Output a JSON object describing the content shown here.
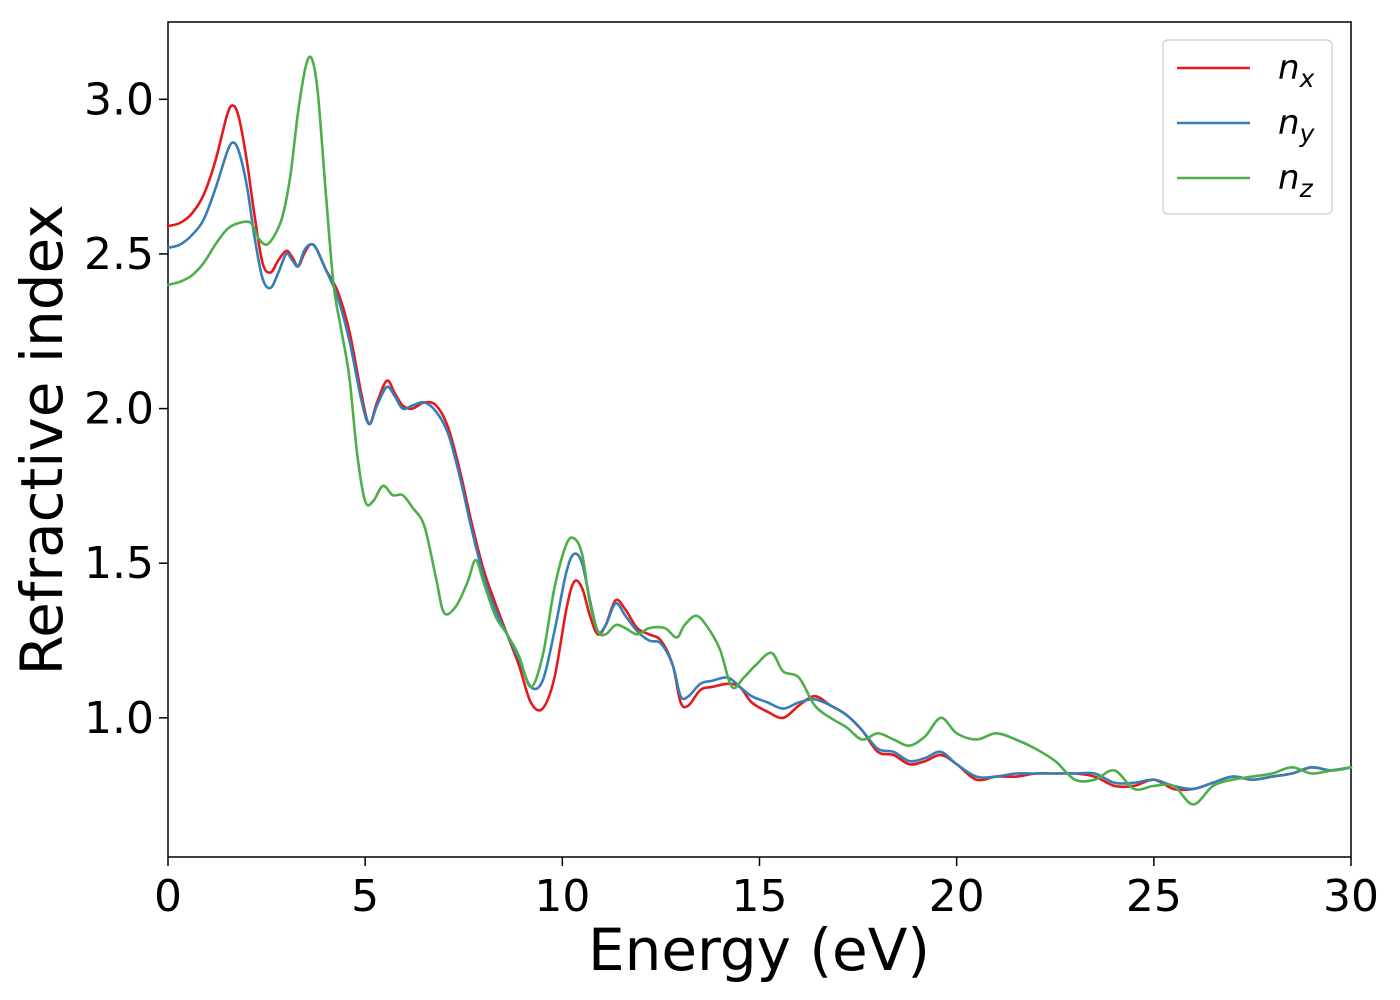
{
  "chart_data": {
    "type": "line",
    "title": "",
    "xlabel": "Energy (eV)",
    "ylabel": "Refractive index",
    "xlim": [
      0,
      30
    ],
    "ylim": [
      0.55,
      3.25
    ],
    "xticks": [
      0,
      5,
      10,
      15,
      20,
      25,
      30
    ],
    "xtick_labels": [
      "0",
      "5",
      "10",
      "15",
      "20",
      "25",
      "30"
    ],
    "yticks": [
      1.0,
      1.5,
      2.0,
      2.5,
      3.0
    ],
    "ytick_labels": [
      "1.0",
      "1.5",
      "2.0",
      "2.5",
      "3.0"
    ],
    "grid": false,
    "legend": {
      "position": "top-right",
      "entries": [
        {
          "base": "n",
          "sub": "x",
          "color": "#e41a1c"
        },
        {
          "base": "n",
          "sub": "y",
          "color": "#377eb8"
        },
        {
          "base": "n",
          "sub": "z",
          "color": "#4daf4a"
        }
      ]
    },
    "series": [
      {
        "name": "n_x",
        "color": "#e41a1c",
        "points": [
          [
            0,
            2.59
          ],
          [
            0.3,
            2.6
          ],
          [
            0.6,
            2.63
          ],
          [
            0.9,
            2.69
          ],
          [
            1.2,
            2.8
          ],
          [
            1.5,
            2.95
          ],
          [
            1.65,
            2.98
          ],
          [
            1.8,
            2.94
          ],
          [
            2.0,
            2.8
          ],
          [
            2.2,
            2.62
          ],
          [
            2.4,
            2.47
          ],
          [
            2.6,
            2.44
          ],
          [
            2.8,
            2.48
          ],
          [
            3.0,
            2.51
          ],
          [
            3.15,
            2.49
          ],
          [
            3.3,
            2.46
          ],
          [
            3.45,
            2.5
          ],
          [
            3.6,
            2.53
          ],
          [
            3.75,
            2.52
          ],
          [
            4.0,
            2.45
          ],
          [
            4.3,
            2.38
          ],
          [
            4.6,
            2.25
          ],
          [
            4.9,
            2.05
          ],
          [
            5.1,
            1.95
          ],
          [
            5.3,
            2.02
          ],
          [
            5.55,
            2.09
          ],
          [
            5.75,
            2.05
          ],
          [
            5.95,
            2.01
          ],
          [
            6.2,
            2.0
          ],
          [
            6.5,
            2.02
          ],
          [
            6.8,
            2.01
          ],
          [
            7.1,
            1.94
          ],
          [
            7.4,
            1.8
          ],
          [
            7.7,
            1.63
          ],
          [
            8.0,
            1.48
          ],
          [
            8.3,
            1.37
          ],
          [
            8.6,
            1.27
          ],
          [
            8.9,
            1.17
          ],
          [
            9.2,
            1.05
          ],
          [
            9.5,
            1.03
          ],
          [
            9.8,
            1.13
          ],
          [
            10.1,
            1.35
          ],
          [
            10.3,
            1.44
          ],
          [
            10.5,
            1.42
          ],
          [
            10.7,
            1.33
          ],
          [
            10.9,
            1.27
          ],
          [
            11.1,
            1.3
          ],
          [
            11.35,
            1.38
          ],
          [
            11.6,
            1.35
          ],
          [
            11.9,
            1.29
          ],
          [
            12.2,
            1.27
          ],
          [
            12.5,
            1.25
          ],
          [
            12.8,
            1.17
          ],
          [
            13.0,
            1.05
          ],
          [
            13.2,
            1.04
          ],
          [
            13.5,
            1.09
          ],
          [
            13.8,
            1.1
          ],
          [
            14.2,
            1.11
          ],
          [
            14.5,
            1.1
          ],
          [
            14.8,
            1.05
          ],
          [
            15.2,
            1.02
          ],
          [
            15.6,
            1.0
          ],
          [
            16.0,
            1.04
          ],
          [
            16.4,
            1.07
          ],
          [
            16.8,
            1.04
          ],
          [
            17.2,
            1.01
          ],
          [
            17.6,
            0.96
          ],
          [
            18.0,
            0.89
          ],
          [
            18.4,
            0.88
          ],
          [
            18.8,
            0.85
          ],
          [
            19.2,
            0.86
          ],
          [
            19.6,
            0.88
          ],
          [
            20.0,
            0.85
          ],
          [
            20.5,
            0.8
          ],
          [
            21.0,
            0.81
          ],
          [
            21.5,
            0.81
          ],
          [
            22.0,
            0.82
          ],
          [
            22.5,
            0.82
          ],
          [
            23.0,
            0.82
          ],
          [
            23.5,
            0.81
          ],
          [
            24.0,
            0.78
          ],
          [
            24.5,
            0.78
          ],
          [
            25.0,
            0.8
          ],
          [
            25.5,
            0.77
          ],
          [
            26.0,
            0.77
          ],
          [
            26.5,
            0.79
          ],
          [
            27.0,
            0.81
          ],
          [
            27.5,
            0.8
          ],
          [
            28.0,
            0.81
          ],
          [
            28.5,
            0.82
          ],
          [
            29.0,
            0.84
          ],
          [
            29.5,
            0.83
          ],
          [
            30.0,
            0.84
          ]
        ]
      },
      {
        "name": "n_y",
        "color": "#377eb8",
        "points": [
          [
            0,
            2.52
          ],
          [
            0.3,
            2.53
          ],
          [
            0.6,
            2.56
          ],
          [
            0.9,
            2.61
          ],
          [
            1.2,
            2.71
          ],
          [
            1.5,
            2.83
          ],
          [
            1.65,
            2.86
          ],
          [
            1.8,
            2.83
          ],
          [
            2.0,
            2.72
          ],
          [
            2.2,
            2.55
          ],
          [
            2.4,
            2.42
          ],
          [
            2.6,
            2.39
          ],
          [
            2.8,
            2.44
          ],
          [
            3.0,
            2.5
          ],
          [
            3.15,
            2.48
          ],
          [
            3.3,
            2.46
          ],
          [
            3.45,
            2.51
          ],
          [
            3.6,
            2.53
          ],
          [
            3.75,
            2.52
          ],
          [
            4.0,
            2.45
          ],
          [
            4.3,
            2.36
          ],
          [
            4.6,
            2.22
          ],
          [
            4.9,
            2.03
          ],
          [
            5.1,
            1.95
          ],
          [
            5.3,
            2.01
          ],
          [
            5.55,
            2.07
          ],
          [
            5.75,
            2.04
          ],
          [
            5.95,
            2.0
          ],
          [
            6.2,
            2.01
          ],
          [
            6.5,
            2.02
          ],
          [
            6.8,
            1.99
          ],
          [
            7.1,
            1.92
          ],
          [
            7.4,
            1.78
          ],
          [
            7.7,
            1.61
          ],
          [
            8.0,
            1.46
          ],
          [
            8.3,
            1.35
          ],
          [
            8.6,
            1.27
          ],
          [
            8.9,
            1.19
          ],
          [
            9.2,
            1.1
          ],
          [
            9.5,
            1.12
          ],
          [
            9.8,
            1.28
          ],
          [
            10.1,
            1.47
          ],
          [
            10.3,
            1.53
          ],
          [
            10.5,
            1.5
          ],
          [
            10.7,
            1.38
          ],
          [
            10.9,
            1.28
          ],
          [
            11.1,
            1.3
          ],
          [
            11.35,
            1.37
          ],
          [
            11.6,
            1.33
          ],
          [
            11.9,
            1.28
          ],
          [
            12.2,
            1.25
          ],
          [
            12.5,
            1.24
          ],
          [
            12.8,
            1.17
          ],
          [
            13.0,
            1.07
          ],
          [
            13.2,
            1.07
          ],
          [
            13.5,
            1.11
          ],
          [
            13.8,
            1.12
          ],
          [
            14.2,
            1.13
          ],
          [
            14.5,
            1.1
          ],
          [
            14.8,
            1.07
          ],
          [
            15.2,
            1.05
          ],
          [
            15.6,
            1.03
          ],
          [
            16.0,
            1.05
          ],
          [
            16.4,
            1.06
          ],
          [
            16.8,
            1.04
          ],
          [
            17.2,
            1.01
          ],
          [
            17.6,
            0.96
          ],
          [
            18.0,
            0.9
          ],
          [
            18.4,
            0.89
          ],
          [
            18.8,
            0.86
          ],
          [
            19.2,
            0.87
          ],
          [
            19.6,
            0.89
          ],
          [
            20.0,
            0.85
          ],
          [
            20.5,
            0.81
          ],
          [
            21.0,
            0.81
          ],
          [
            21.5,
            0.82
          ],
          [
            22.0,
            0.82
          ],
          [
            22.5,
            0.82
          ],
          [
            23.0,
            0.82
          ],
          [
            23.5,
            0.82
          ],
          [
            24.0,
            0.79
          ],
          [
            24.5,
            0.79
          ],
          [
            25.0,
            0.8
          ],
          [
            25.5,
            0.78
          ],
          [
            26.0,
            0.77
          ],
          [
            26.5,
            0.79
          ],
          [
            27.0,
            0.81
          ],
          [
            27.5,
            0.8
          ],
          [
            28.0,
            0.81
          ],
          [
            28.5,
            0.82
          ],
          [
            29.0,
            0.84
          ],
          [
            29.5,
            0.83
          ],
          [
            30.0,
            0.84
          ]
        ]
      },
      {
        "name": "n_z",
        "color": "#4daf4a",
        "points": [
          [
            0,
            2.4
          ],
          [
            0.3,
            2.41
          ],
          [
            0.6,
            2.43
          ],
          [
            0.9,
            2.47
          ],
          [
            1.2,
            2.53
          ],
          [
            1.5,
            2.58
          ],
          [
            1.8,
            2.6
          ],
          [
            2.1,
            2.6
          ],
          [
            2.3,
            2.55
          ],
          [
            2.5,
            2.53
          ],
          [
            2.7,
            2.56
          ],
          [
            2.9,
            2.62
          ],
          [
            3.1,
            2.75
          ],
          [
            3.3,
            2.96
          ],
          [
            3.5,
            3.11
          ],
          [
            3.65,
            3.13
          ],
          [
            3.8,
            3.02
          ],
          [
            4.0,
            2.7
          ],
          [
            4.2,
            2.4
          ],
          [
            4.4,
            2.25
          ],
          [
            4.6,
            2.1
          ],
          [
            4.8,
            1.85
          ],
          [
            5.0,
            1.7
          ],
          [
            5.2,
            1.7
          ],
          [
            5.45,
            1.75
          ],
          [
            5.7,
            1.72
          ],
          [
            5.95,
            1.72
          ],
          [
            6.2,
            1.68
          ],
          [
            6.5,
            1.62
          ],
          [
            6.8,
            1.45
          ],
          [
            7.0,
            1.34
          ],
          [
            7.3,
            1.36
          ],
          [
            7.6,
            1.44
          ],
          [
            7.8,
            1.51
          ],
          [
            8.0,
            1.44
          ],
          [
            8.3,
            1.33
          ],
          [
            8.6,
            1.27
          ],
          [
            8.9,
            1.2
          ],
          [
            9.2,
            1.1
          ],
          [
            9.5,
            1.2
          ],
          [
            9.8,
            1.42
          ],
          [
            10.1,
            1.56
          ],
          [
            10.3,
            1.58
          ],
          [
            10.5,
            1.53
          ],
          [
            10.7,
            1.37
          ],
          [
            10.9,
            1.28
          ],
          [
            11.1,
            1.27
          ],
          [
            11.35,
            1.3
          ],
          [
            11.6,
            1.29
          ],
          [
            11.9,
            1.27
          ],
          [
            12.2,
            1.29
          ],
          [
            12.6,
            1.29
          ],
          [
            12.9,
            1.26
          ],
          [
            13.1,
            1.3
          ],
          [
            13.4,
            1.33
          ],
          [
            13.7,
            1.29
          ],
          [
            14.0,
            1.22
          ],
          [
            14.3,
            1.1
          ],
          [
            14.6,
            1.13
          ],
          [
            14.9,
            1.17
          ],
          [
            15.3,
            1.21
          ],
          [
            15.6,
            1.15
          ],
          [
            16.0,
            1.13
          ],
          [
            16.4,
            1.04
          ],
          [
            16.8,
            1.0
          ],
          [
            17.2,
            0.97
          ],
          [
            17.6,
            0.93
          ],
          [
            18.0,
            0.95
          ],
          [
            18.4,
            0.93
          ],
          [
            18.8,
            0.91
          ],
          [
            19.2,
            0.94
          ],
          [
            19.6,
            1.0
          ],
          [
            20.0,
            0.95
          ],
          [
            20.5,
            0.93
          ],
          [
            21.0,
            0.95
          ],
          [
            21.5,
            0.93
          ],
          [
            22.0,
            0.9
          ],
          [
            22.5,
            0.86
          ],
          [
            23.0,
            0.8
          ],
          [
            23.5,
            0.8
          ],
          [
            24.0,
            0.83
          ],
          [
            24.5,
            0.77
          ],
          [
            25.0,
            0.78
          ],
          [
            25.5,
            0.78
          ],
          [
            26.0,
            0.72
          ],
          [
            26.5,
            0.78
          ],
          [
            27.0,
            0.8
          ],
          [
            27.5,
            0.81
          ],
          [
            28.0,
            0.82
          ],
          [
            28.5,
            0.84
          ],
          [
            29.0,
            0.82
          ],
          [
            29.5,
            0.83
          ],
          [
            30.0,
            0.84
          ]
        ]
      }
    ]
  }
}
